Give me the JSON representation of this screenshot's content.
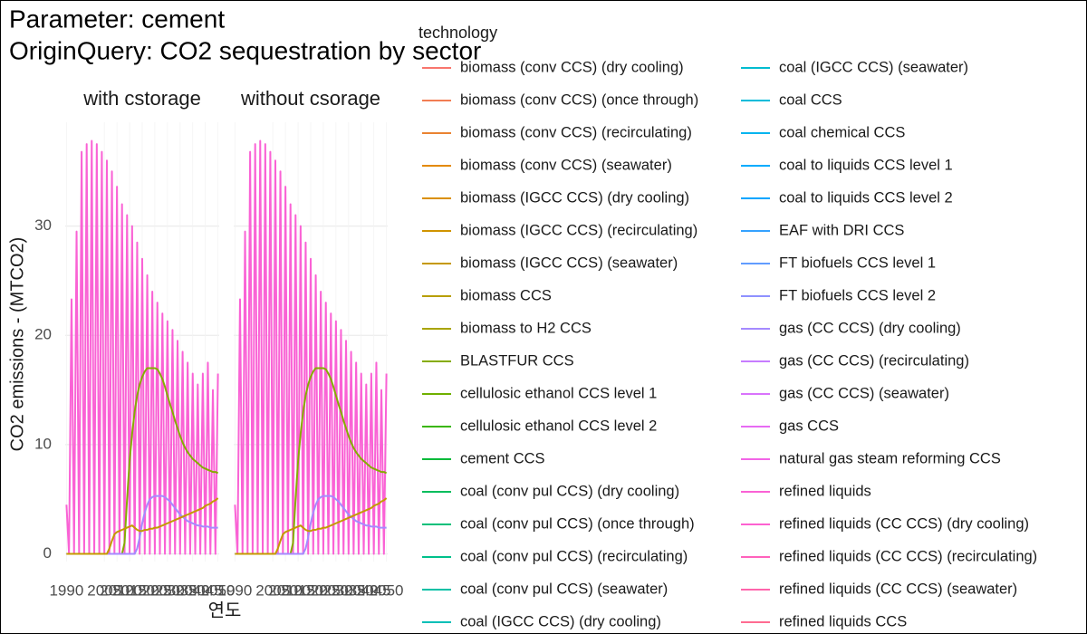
{
  "chart_data": {
    "type": "line",
    "title": [
      "Parameter: cement",
      "OriginQuery: CO2 sequestration by sector"
    ],
    "ylabel": "CO2 emissions - (MTCO2)",
    "xlabel": "연도",
    "x": [
      1990,
      1991,
      1992,
      1993,
      1994,
      1995,
      1996,
      1997,
      1998,
      1999,
      2000,
      2001,
      2002,
      2003,
      2004,
      2005,
      2006,
      2007,
      2008,
      2009,
      2010,
      2011,
      2012,
      2013,
      2014,
      2015,
      2016,
      2017,
      2018,
      2019,
      2020,
      2021,
      2022,
      2023,
      2024,
      2025,
      2026,
      2027,
      2028,
      2029,
      2030,
      2031,
      2032,
      2033,
      2034,
      2035,
      2036,
      2037,
      2038,
      2039,
      2040,
      2041,
      2042,
      2043,
      2044,
      2045,
      2046,
      2047,
      2048,
      2049,
      2050
    ],
    "xlim": [
      1989.5,
      2050.5
    ],
    "xticks": [
      1990,
      2005,
      2010,
      2015,
      2020,
      2025,
      2030,
      2035,
      2040,
      2045,
      2050
    ],
    "ylim": [
      -0.7,
      39.5
    ],
    "yticks": [
      0,
      10,
      20,
      30
    ],
    "grid": true,
    "legend": {
      "title": "technology",
      "position": "right",
      "items": [
        {
          "name": "biomass (conv CCS) (dry cooling)",
          "color": "#F8766D"
        },
        {
          "name": "biomass (conv CCS) (once through)",
          "color": "#F27D53"
        },
        {
          "name": "biomass (conv CCS) (recirculating)",
          "color": "#EA8331"
        },
        {
          "name": "biomass (conv CCS) (seawater)",
          "color": "#E38900"
        },
        {
          "name": "biomass (IGCC CCS) (dry cooling)",
          "color": "#DA8F00"
        },
        {
          "name": "biomass (IGCC CCS) (recirculating)",
          "color": "#D09400"
        },
        {
          "name": "biomass (IGCC CCS) (seawater)",
          "color": "#C59900"
        },
        {
          "name": "biomass CCS",
          "color": "#B79F00"
        },
        {
          "name": "biomass to H2 CCS",
          "color": "#A9A400"
        },
        {
          "name": "BLASTFUR CCS",
          "color": "#86AC00"
        },
        {
          "name": "cellulosic ethanol CCS level 1",
          "color": "#6FB000"
        },
        {
          "name": "cellulosic ethanol CCS level 2",
          "color": "#39B600"
        },
        {
          "name": "cement CCS",
          "color": "#00BA38"
        },
        {
          "name": "coal (conv pul CCS) (dry cooling)",
          "color": "#00BD5C"
        },
        {
          "name": "coal (conv pul CCS) (once through)",
          "color": "#00C07A"
        },
        {
          "name": "coal (conv pul CCS) (recirculating)",
          "color": "#00C08B"
        },
        {
          "name": "coal (conv pul CCS) (seawater)",
          "color": "#00C0A5"
        },
        {
          "name": "coal (IGCC CCS) (dry cooling)",
          "color": "#00BFB7"
        },
        {
          "name": "coal (IGCC CCS) (seawater)",
          "color": "#00BCD0"
        },
        {
          "name": "coal CCS",
          "color": "#00BBDA"
        },
        {
          "name": "coal chemical CCS",
          "color": "#00B4EF"
        },
        {
          "name": "coal to liquids CCS level 1",
          "color": "#00ABFD"
        },
        {
          "name": "coal to liquids CCS level 2",
          "color": "#00A5FF"
        },
        {
          "name": "EAF with DRI CCS",
          "color": "#35A2FF"
        },
        {
          "name": "FT biofuels CCS level 1",
          "color": "#619CFF"
        },
        {
          "name": "FT biofuels CCS level 2",
          "color": "#8F91FF"
        },
        {
          "name": "gas (CC CCS) (dry cooling)",
          "color": "#A58AFF"
        },
        {
          "name": "gas (CC CCS) (recirculating)",
          "color": "#C77CFF"
        },
        {
          "name": "gas (CC CCS) (seawater)",
          "color": "#D973FC"
        },
        {
          "name": "gas CCS",
          "color": "#E76BF3"
        },
        {
          "name": "natural gas steam reforming CCS",
          "color": "#F265E7"
        },
        {
          "name": "refined liquids",
          "color": "#FA62D5"
        },
        {
          "name": "refined liquids (CC CCS) (dry cooling)",
          "color": "#FD61D1"
        },
        {
          "name": "refined liquids (CC CCS) (recirculating)",
          "color": "#FF62BC"
        },
        {
          "name": "refined liquids (CC CCS) (seawater)",
          "color": "#FF65AC"
        },
        {
          "name": "refined liquids CCS",
          "color": "#FF6C91"
        }
      ]
    },
    "facets": [
      {
        "title": "with cstorage",
        "series": [
          {
            "name": "refined liquids",
            "color": "#FA62D5",
            "values": [
              4.5,
              0,
              23.3,
              0,
              29.5,
              0,
              36.8,
              0,
              37.5,
              0,
              37.8,
              0,
              37.5,
              0,
              36.8,
              0,
              36,
              0,
              35,
              0,
              33.6,
              0,
              32,
              0,
              31,
              0,
              30,
              0,
              28.5,
              0,
              27,
              0,
              25.5,
              0,
              24,
              0,
              23,
              0,
              22,
              0,
              21.3,
              0,
              20.5,
              0,
              19.5,
              0,
              18.5,
              0,
              17.5,
              0,
              16.5,
              0,
              15.5,
              0,
              16.5,
              0,
              17.5,
              0,
              15,
              0,
              16.5
            ]
          },
          {
            "name": "BLASTFUR CCS",
            "color": "#86AC00",
            "values": [
              0,
              0,
              0,
              0,
              0,
              0,
              0,
              0,
              0,
              0,
              0,
              0,
              0,
              0,
              0,
              0,
              0,
              0,
              0,
              0,
              0,
              0,
              0,
              1,
              5,
              8.5,
              11,
              13,
              14.5,
              15.5,
              16.2,
              16.7,
              17,
              17,
              17,
              17,
              16.9,
              16.5,
              16,
              15.3,
              14.5,
              13.7,
              13,
              12.2,
              11.5,
              10.8,
              10.2,
              9.7,
              9.3,
              9,
              8.7,
              8.5,
              8.3,
              8.1,
              7.9,
              7.8,
              7.7,
              7.6,
              7.5,
              7.5,
              7.4
            ]
          },
          {
            "name": "gas (CC CCS) (dry cooling)",
            "color": "#A58AFF",
            "values": [
              0,
              0,
              0,
              0,
              0,
              0,
              0,
              0,
              0,
              0,
              0,
              0,
              0,
              0,
              0,
              0,
              0,
              0,
              0,
              0,
              0,
              0,
              0,
              0,
              0,
              0,
              0,
              0,
              0.5,
              1.5,
              2.8,
              3.8,
              4.5,
              5,
              5.2,
              5.3,
              5.3,
              5.3,
              5.3,
              5.2,
              5,
              4.8,
              4.5,
              4.2,
              3.9,
              3.6,
              3.4,
              3.2,
              3,
              2.9,
              2.8,
              2.7,
              2.6,
              2.6,
              2.5,
              2.5,
              2.5,
              2.4,
              2.4,
              2.4,
              2.4
            ]
          },
          {
            "name": "biomass (IGCC CCS) (seawater)",
            "color": "#C59900",
            "values": [
              0,
              0,
              0,
              0,
              0,
              0,
              0,
              0,
              0,
              0,
              0,
              0,
              0,
              0,
              0,
              0,
              0,
              0.5,
              1.2,
              1.8,
              2,
              2.1,
              2.2,
              2.3,
              2.4,
              2.5,
              2.6,
              2.4,
              2.2,
              2.1,
              2.1,
              2.2,
              2.2,
              2.3,
              2.3,
              2.4,
              2.4,
              2.5,
              2.6,
              2.7,
              2.8,
              2.9,
              3,
              3.1,
              3.2,
              3.3,
              3.4,
              3.5,
              3.6,
              3.7,
              3.8,
              3.9,
              4,
              4.1,
              4.2,
              4.4,
              4.5,
              4.6,
              4.8,
              4.9,
              5.1
            ]
          }
        ]
      },
      {
        "title": "without csorage",
        "series": [
          {
            "name": "refined liquids",
            "color": "#FA62D5",
            "values": [
              4.5,
              0,
              23.3,
              0,
              29.5,
              0,
              36.8,
              0,
              37.5,
              0,
              37.8,
              0,
              37.5,
              0,
              36.8,
              0,
              36,
              0,
              35,
              0,
              33.6,
              0,
              32,
              0,
              31,
              0,
              30,
              0,
              28.5,
              0,
              27,
              0,
              25.5,
              0,
              24,
              0,
              23,
              0,
              22,
              0,
              21.3,
              0,
              20.5,
              0,
              19.5,
              0,
              18.5,
              0,
              17.5,
              0,
              16.5,
              0,
              15.5,
              0,
              16.5,
              0,
              17.5,
              0,
              15,
              0,
              16.5
            ]
          },
          {
            "name": "BLASTFUR CCS",
            "color": "#86AC00",
            "values": [
              0,
              0,
              0,
              0,
              0,
              0,
              0,
              0,
              0,
              0,
              0,
              0,
              0,
              0,
              0,
              0,
              0,
              0,
              0,
              0,
              0,
              0,
              0,
              1,
              5,
              8.5,
              11,
              13,
              14.5,
              15.5,
              16.2,
              16.7,
              17,
              17,
              17,
              17,
              16.9,
              16.5,
              16,
              15.3,
              14.5,
              13.7,
              13,
              12.2,
              11.5,
              10.8,
              10.2,
              9.7,
              9.3,
              9,
              8.7,
              8.5,
              8.3,
              8.1,
              7.9,
              7.8,
              7.7,
              7.6,
              7.5,
              7.5,
              7.4
            ]
          },
          {
            "name": "gas (CC CCS) (dry cooling)",
            "color": "#A58AFF",
            "values": [
              0,
              0,
              0,
              0,
              0,
              0,
              0,
              0,
              0,
              0,
              0,
              0,
              0,
              0,
              0,
              0,
              0,
              0,
              0,
              0,
              0,
              0,
              0,
              0,
              0,
              0,
              0,
              0,
              0.5,
              1.5,
              2.8,
              3.8,
              4.5,
              5,
              5.2,
              5.3,
              5.3,
              5.3,
              5.3,
              5.2,
              5,
              4.8,
              4.5,
              4.2,
              3.9,
              3.6,
              3.4,
              3.2,
              3,
              2.9,
              2.8,
              2.7,
              2.6,
              2.6,
              2.5,
              2.5,
              2.5,
              2.4,
              2.4,
              2.4,
              2.4
            ]
          },
          {
            "name": "biomass (IGCC CCS) (seawater)",
            "color": "#C59900",
            "values": [
              0,
              0,
              0,
              0,
              0,
              0,
              0,
              0,
              0,
              0,
              0,
              0,
              0,
              0,
              0,
              0,
              0,
              0.5,
              1.2,
              1.8,
              2,
              2.1,
              2.2,
              2.3,
              2.4,
              2.5,
              2.6,
              2.4,
              2.2,
              2.1,
              2.1,
              2.2,
              2.2,
              2.3,
              2.3,
              2.4,
              2.4,
              2.5,
              2.6,
              2.7,
              2.8,
              2.9,
              3,
              3.1,
              3.2,
              3.3,
              3.4,
              3.5,
              3.6,
              3.7,
              3.8,
              3.9,
              4,
              4.1,
              4.2,
              4.4,
              4.5,
              4.6,
              4.8,
              4.9,
              5.1
            ]
          }
        ]
      }
    ]
  }
}
